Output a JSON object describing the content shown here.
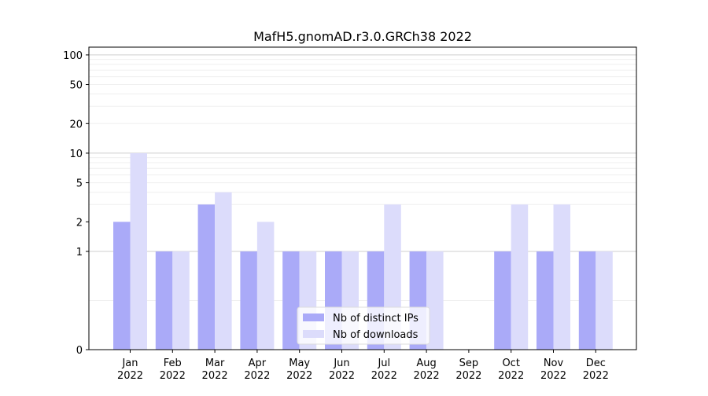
{
  "chart_data": {
    "type": "bar",
    "title": "MafH5.gnomAD.r3.0.GRCh38 2022",
    "xlabel": "",
    "ylabel": "",
    "yscale": "symlog",
    "ylim": [
      0,
      120
    ],
    "yticks": [
      0,
      1,
      2,
      5,
      10,
      20,
      50,
      100
    ],
    "categories": [
      {
        "month": "Jan",
        "year": "2022"
      },
      {
        "month": "Feb",
        "year": "2022"
      },
      {
        "month": "Mar",
        "year": "2022"
      },
      {
        "month": "Apr",
        "year": "2022"
      },
      {
        "month": "May",
        "year": "2022"
      },
      {
        "month": "Jun",
        "year": "2022"
      },
      {
        "month": "Jul",
        "year": "2022"
      },
      {
        "month": "Aug",
        "year": "2022"
      },
      {
        "month": "Sep",
        "year": "2022"
      },
      {
        "month": "Oct",
        "year": "2022"
      },
      {
        "month": "Nov",
        "year": "2022"
      },
      {
        "month": "Dec",
        "year": "2022"
      }
    ],
    "series": [
      {
        "name": "Nb of distinct IPs",
        "color": "#aaaaf8",
        "values": [
          2,
          1,
          3,
          1,
          1,
          1,
          1,
          1,
          0,
          1,
          1,
          1
        ]
      },
      {
        "name": "Nb of downloads",
        "color": "#dcdcfb",
        "values": [
          10,
          1,
          4,
          2,
          1,
          1,
          3,
          1,
          0,
          3,
          3,
          1
        ]
      }
    ],
    "grid": true,
    "legend_position": "bottom-center"
  }
}
